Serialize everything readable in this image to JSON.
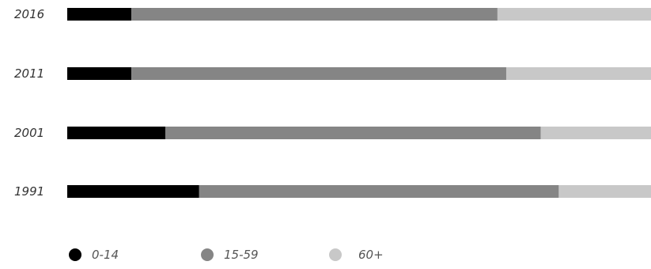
{
  "chart_data": {
    "type": "bar",
    "orientation": "horizontal",
    "stacked": true,
    "normalized_percent": true,
    "title": "",
    "xlabel": "",
    "ylabel": "",
    "xlim": [
      0,
      100
    ],
    "categories": [
      "2016",
      "2011",
      "2001",
      "1991"
    ],
    "series": [
      {
        "name": "0-14",
        "color": "#000000",
        "values": [
          11.0,
          11.0,
          16.8,
          22.6
        ]
      },
      {
        "name": "15-59",
        "color": "#858585",
        "values": [
          62.7,
          64.2,
          64.3,
          61.6
        ]
      },
      {
        "name": "60+",
        "color": "#c8c8c8",
        "values": [
          26.3,
          24.8,
          18.9,
          15.8
        ]
      }
    ],
    "legend": {
      "position": "bottom-left",
      "marker": "circle"
    },
    "grid": false
  }
}
